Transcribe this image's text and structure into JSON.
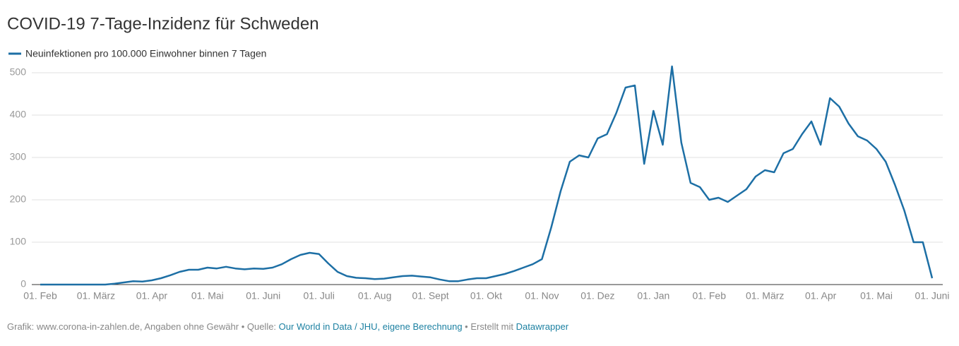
{
  "chart_data": {
    "type": "line",
    "title": "COVID-19 7-Tage-Inzidenz für Schweden",
    "x": [
      "01. Feb",
      null,
      null,
      null,
      null,
      null,
      "01. März",
      null,
      null,
      null,
      null,
      null,
      "01. Apr",
      null,
      null,
      null,
      null,
      null,
      "01. Mai",
      null,
      null,
      null,
      null,
      null,
      "01. Juni",
      null,
      null,
      null,
      null,
      null,
      "01. Juli",
      null,
      null,
      null,
      null,
      null,
      "01. Aug",
      null,
      null,
      null,
      null,
      null,
      "01. Sept",
      null,
      null,
      null,
      null,
      null,
      "01. Okt",
      null,
      null,
      null,
      null,
      null,
      "01. Nov",
      null,
      null,
      null,
      null,
      null,
      "01. Dez",
      null,
      null,
      null,
      null,
      null,
      "01. Jan",
      null,
      null,
      null,
      null,
      null,
      "01. Feb",
      null,
      null,
      null,
      null,
      null,
      "01. März",
      null,
      null,
      null,
      null,
      null,
      "01. Apr",
      null,
      null,
      null,
      null,
      null,
      "01. Mai",
      null,
      null,
      null,
      null,
      null,
      "01. Juni"
    ],
    "series": [
      {
        "name": "Neuinfektionen pro 100.000 Einwohner binnen 7 Tagen",
        "color": "#1d6fa5",
        "values": [
          0,
          0,
          0,
          0,
          0,
          0,
          0,
          0,
          2,
          5,
          8,
          7,
          10,
          15,
          22,
          30,
          35,
          35,
          40,
          38,
          42,
          38,
          36,
          38,
          37,
          40,
          48,
          60,
          70,
          75,
          72,
          50,
          30,
          20,
          16,
          15,
          13,
          14,
          17,
          20,
          21,
          19,
          17,
          12,
          8,
          8,
          12,
          15,
          15,
          20,
          25,
          32,
          40,
          48,
          60,
          135,
          220,
          290,
          305,
          300,
          345,
          355,
          405,
          465,
          470,
          285,
          410,
          330,
          515,
          335,
          240,
          230,
          200,
          205,
          195,
          210,
          225,
          255,
          270,
          265,
          310,
          320,
          355,
          385,
          330,
          440,
          420,
          380,
          350,
          340,
          320,
          290,
          235,
          175,
          100,
          100,
          15
        ]
      }
    ],
    "ylim": [
      0,
      500
    ],
    "yticks": [
      0,
      100,
      200,
      300,
      400,
      500
    ],
    "grid": true,
    "footer": [
      "Grafik: www.corona-in-zahlen.de, Angaben ohne Gewähr • Quelle: ",
      "Our World in Data / JHU, eigene Berechnung",
      " • Erstellt mit ",
      "Datawrapper"
    ]
  }
}
